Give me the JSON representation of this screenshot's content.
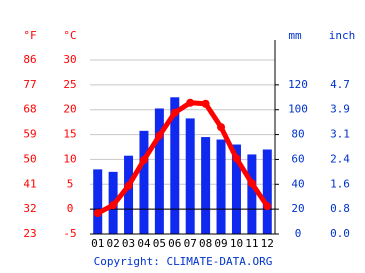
{
  "chart_data": {
    "type": "climate",
    "categories": [
      "01",
      "02",
      "03",
      "04",
      "05",
      "06",
      "07",
      "08",
      "09",
      "10",
      "11",
      "12"
    ],
    "series": [
      {
        "name": "mm",
        "type": "bar",
        "axis": "y2",
        "color": "#1029ee",
        "values": [
          52,
          50,
          63,
          83,
          101,
          110,
          93,
          78,
          76,
          72,
          64,
          68
        ]
      },
      {
        "name": "°C",
        "type": "line",
        "axis": "y",
        "color": "#ff0000",
        "values": [
          -0.8,
          0.8,
          4.7,
          9.9,
          14.8,
          19.4,
          21.4,
          21.2,
          16.5,
          10.2,
          5.2,
          0.6
        ]
      }
    ],
    "y_label_left": "°F",
    "y_label": "°C",
    "y2_label": "mm",
    "y2_label_right": "inch",
    "ylim": [
      -5,
      30
    ],
    "yticks": [
      -5,
      0,
      5,
      10,
      15,
      20,
      25,
      30
    ],
    "fahrenheit_ticks": [
      {
        "value": -5,
        "label": "23"
      },
      {
        "value": 0,
        "label": "32"
      },
      {
        "value": 5,
        "label": "41"
      },
      {
        "value": 10,
        "label": "50"
      },
      {
        "value": 15,
        "label": "59"
      },
      {
        "value": 20,
        "label": "68"
      },
      {
        "value": 25,
        "label": "77"
      },
      {
        "value": 30,
        "label": "86"
      }
    ],
    "y2lim": [
      0,
      140
    ],
    "y2ticks": [
      0,
      20,
      40,
      60,
      80,
      100,
      120
    ],
    "inch_ticks": [
      {
        "value": 0,
        "label": "0.0"
      },
      {
        "value": 20,
        "label": "0.8"
      },
      {
        "value": 40,
        "label": "1.6"
      },
      {
        "value": 60,
        "label": "2.4"
      },
      {
        "value": 80,
        "label": "3.1"
      },
      {
        "value": 100,
        "label": "3.9"
      },
      {
        "value": 120,
        "label": "4.7"
      }
    ],
    "grid": true,
    "copyright": "Copyright: CLIMATE-DATA.ORG"
  }
}
